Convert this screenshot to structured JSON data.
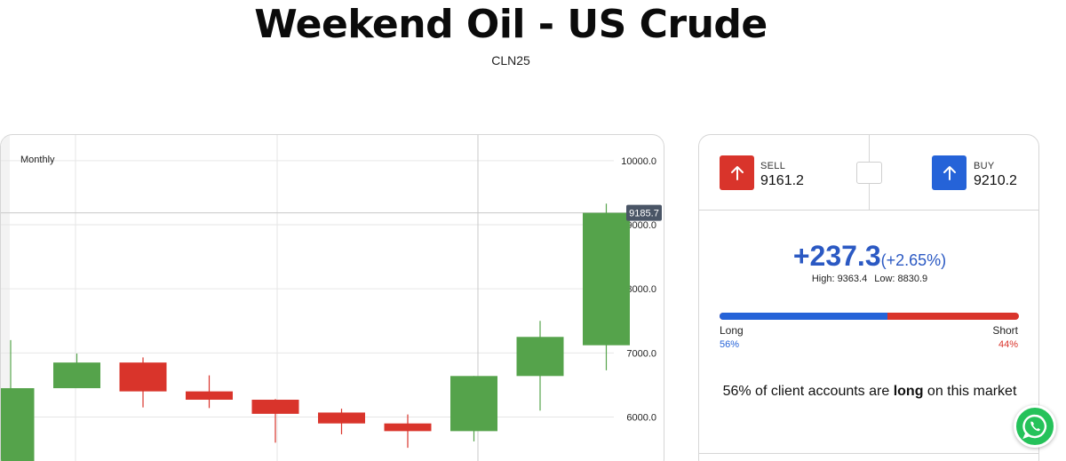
{
  "page": {
    "title": "Weekend Oil - US Crude",
    "subtitle": "CLN25"
  },
  "chart": {
    "period_label": "Monthly",
    "current_price_tag": "9185.7",
    "colors": {
      "up": "#55a34b",
      "down": "#d9342b",
      "tag_bg": "#4a5566",
      "grid": "#e6e6e6"
    }
  },
  "chart_data": {
    "type": "candlestick",
    "yticks": [
      "6000.0",
      "7000.0",
      "8000.0",
      "9000.0",
      "10000.0"
    ],
    "ylim": [
      5300,
      10400
    ],
    "current_price": 9185.7,
    "candles": [
      {
        "open": 5200,
        "high": 7200,
        "low": 5200,
        "close": 6450
      },
      {
        "open": 6450,
        "high": 6990,
        "low": 6450,
        "close": 6850
      },
      {
        "open": 6850,
        "high": 6930,
        "low": 6150,
        "close": 6400
      },
      {
        "open": 6400,
        "high": 6650,
        "low": 6140,
        "close": 6270
      },
      {
        "open": 6270,
        "high": 6280,
        "low": 5600,
        "close": 6050
      },
      {
        "open": 6070,
        "high": 6130,
        "low": 5730,
        "close": 5900
      },
      {
        "open": 5900,
        "high": 6040,
        "low": 5520,
        "close": 5780
      },
      {
        "open": 5780,
        "high": 6640,
        "low": 5620,
        "close": 6640
      },
      {
        "open": 6640,
        "high": 7500,
        "low": 6100,
        "close": 7250
      },
      {
        "open": 7120,
        "high": 9330,
        "low": 6730,
        "close": 9185.7
      }
    ]
  },
  "trade": {
    "sell_label": "SELL",
    "sell_price": "9161.2",
    "buy_label": "BUY",
    "buy_price": "9210.2",
    "change": "+237.3",
    "change_pct": "(+2.65%)",
    "high_text": "High: 9363.4",
    "low_text": "Low: 8830.9"
  },
  "sentiment": {
    "long_fraction": 0.56,
    "long_label": "Long",
    "short_label": "Short",
    "long_pct": "56%",
    "short_pct": "44%",
    "text_pct": "56%",
    "text_mid": " of client accounts are ",
    "text_bold": "long",
    "text_end": " on this market"
  },
  "icons": {
    "sell": "arrow-up-icon",
    "buy": "arrow-up-icon",
    "chat": "whatsapp-icon"
  }
}
